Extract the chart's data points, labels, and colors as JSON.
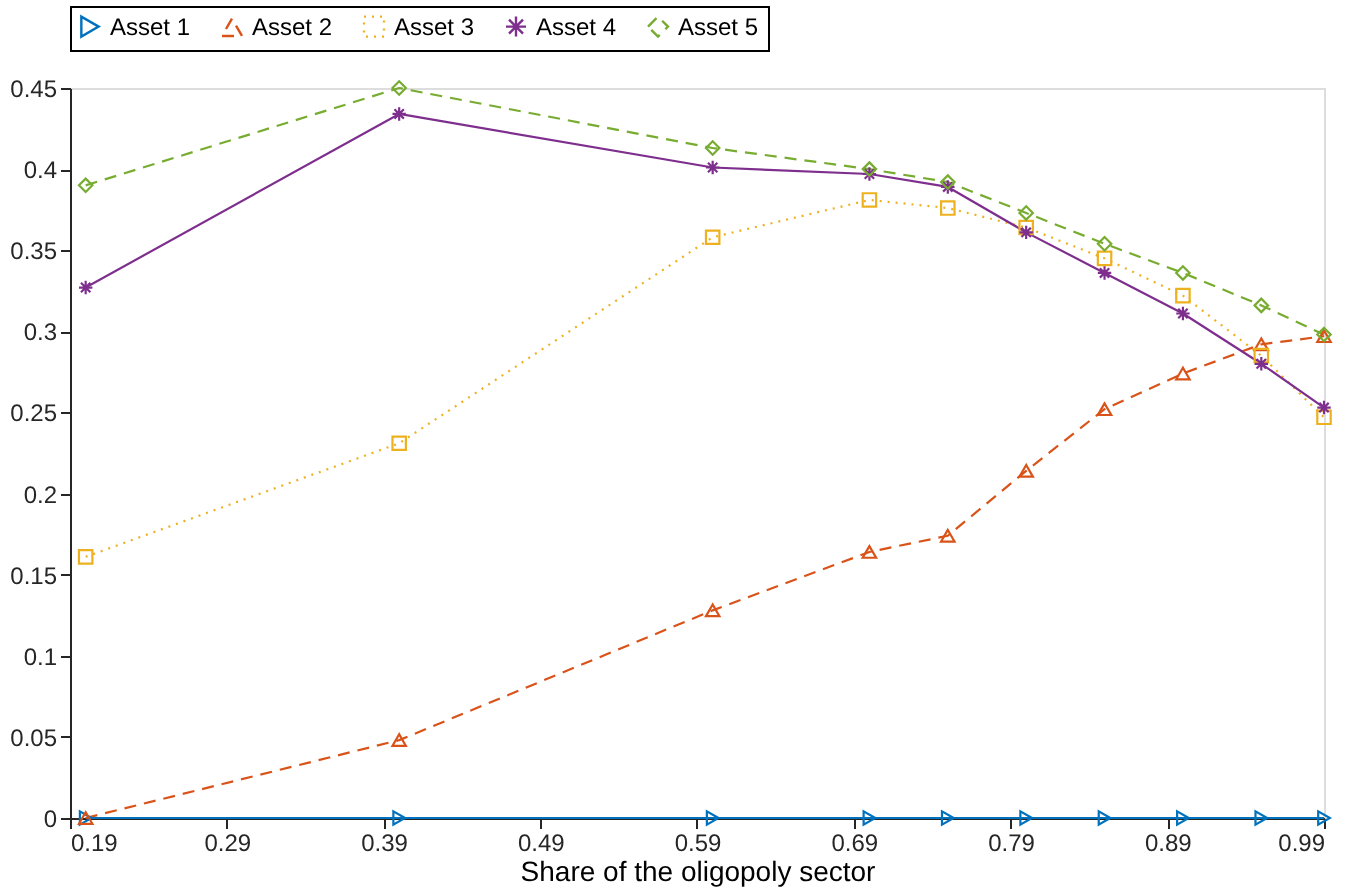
{
  "chart_data": {
    "type": "line",
    "xlabel": "Share of the oligopoly sector",
    "x": [
      0.2,
      0.4,
      0.6,
      0.7,
      0.75,
      0.8,
      0.85,
      0.9,
      0.95,
      0.99
    ],
    "xlim": [
      0.19,
      0.99
    ],
    "xticks": [
      0.19,
      0.29,
      0.39,
      0.49,
      0.59,
      0.69,
      0.79,
      0.89,
      0.99
    ],
    "ylim": [
      0,
      0.45
    ],
    "yticks": [
      0,
      0.05,
      0.1,
      0.15,
      0.2,
      0.25,
      0.3,
      0.35,
      0.4,
      0.45
    ],
    "grid": false,
    "legend": "top",
    "series": [
      {
        "name": "Asset 1",
        "color": "#0072bd",
        "marker": "triangle-right",
        "line_style": "solid",
        "values": [
          0,
          0,
          0,
          0,
          0,
          0,
          0,
          0,
          0,
          0
        ]
      },
      {
        "name": "Asset 2",
        "color": "#d95319",
        "marker": "triangle",
        "line_style": "dashed",
        "values": [
          0.0,
          0.048,
          0.128,
          0.164,
          0.174,
          0.214,
          0.252,
          0.274,
          0.292,
          0.297
        ]
      },
      {
        "name": "Asset 3",
        "color": "#edb120",
        "marker": "square",
        "line_style": "dotted",
        "values": [
          0.161,
          0.231,
          0.358,
          0.381,
          0.376,
          0.364,
          0.345,
          0.322,
          0.285,
          0.247
        ]
      },
      {
        "name": "Asset 4",
        "color": "#7e2f8e",
        "marker": "cross",
        "line_style": "solid",
        "values": [
          0.327,
          0.434,
          0.401,
          0.397,
          0.389,
          0.361,
          0.336,
          0.311,
          0.28,
          0.253
        ]
      },
      {
        "name": "Asset 5",
        "color": "#77ac30",
        "marker": "diamond",
        "line_style": "dashed",
        "values": [
          0.39,
          0.45,
          0.413,
          0.4,
          0.392,
          0.373,
          0.354,
          0.336,
          0.316,
          0.298
        ]
      }
    ]
  }
}
